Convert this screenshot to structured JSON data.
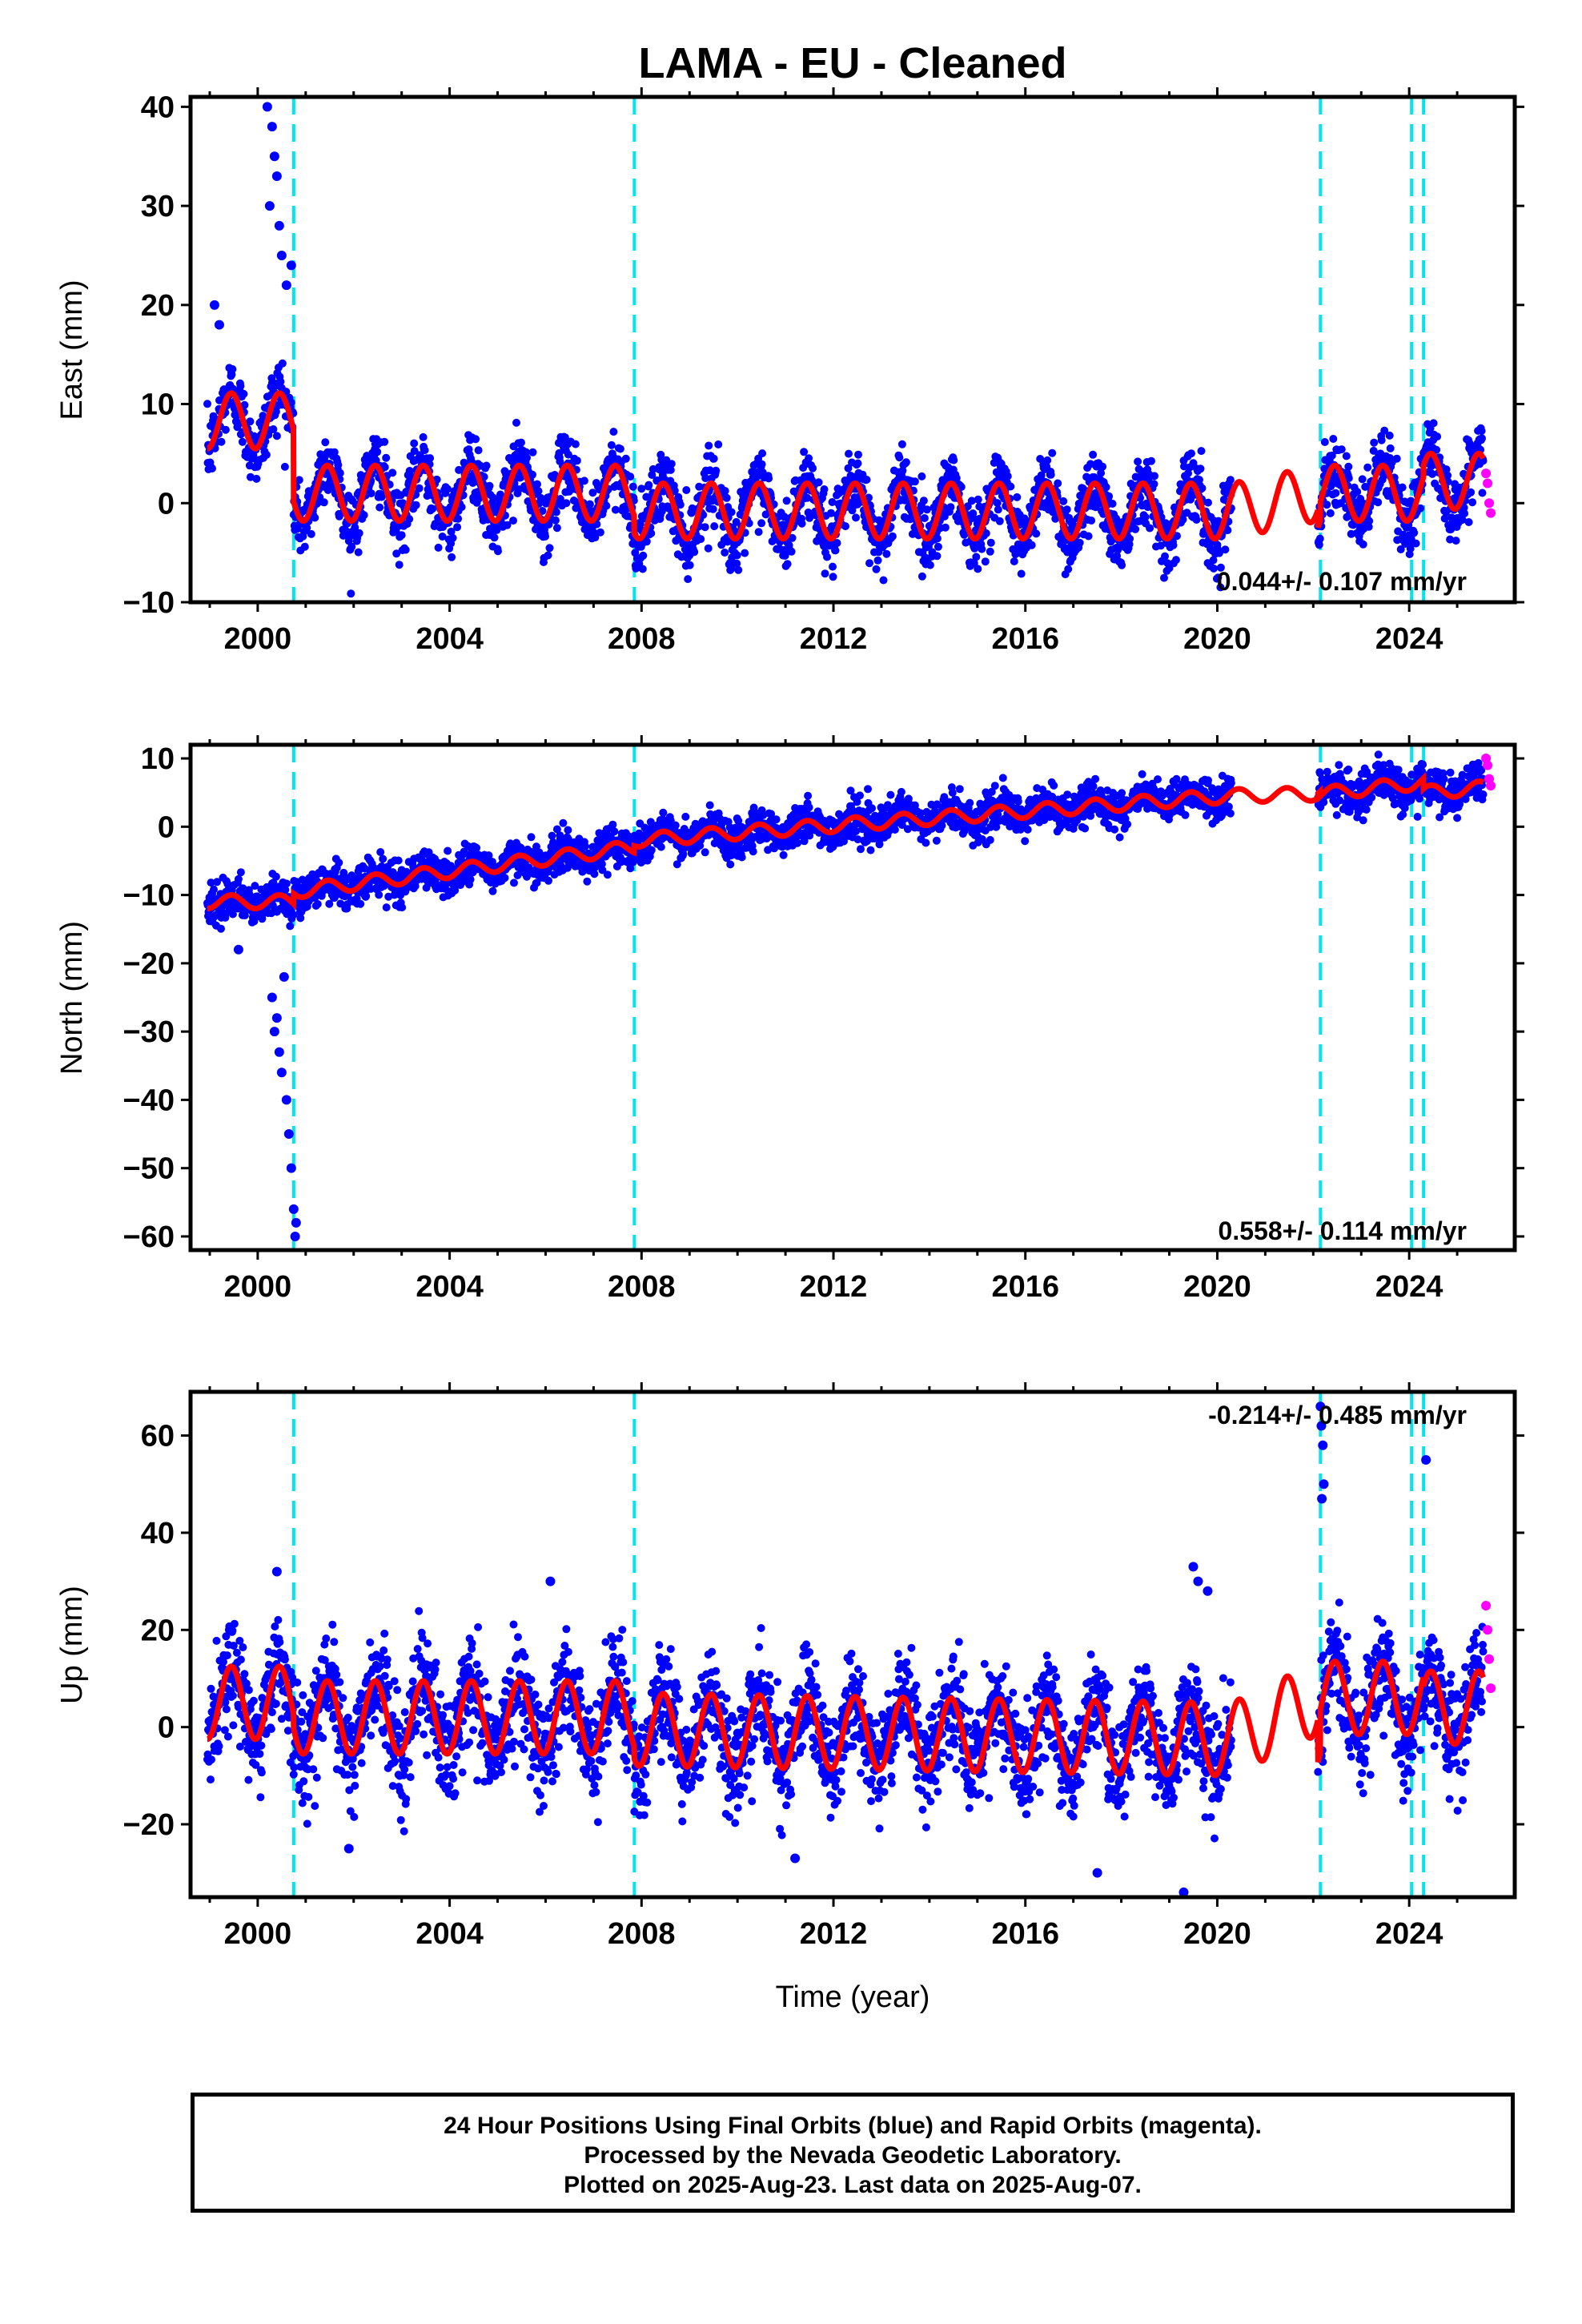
{
  "title": "LAMA  - EU - Cleaned",
  "x_axis": {
    "label": "Time (year)",
    "ticks": [
      "2000",
      "2004",
      "2008",
      "2012",
      "2016",
      "2020",
      "2024"
    ]
  },
  "footer": {
    "line1": "24 Hour Positions Using Final Orbits (blue) and Rapid Orbits (magenta).",
    "line2": "Processed by the Nevada Geodetic Laboratory.",
    "line3": "Plotted on 2025-Aug-23. Last data on 2025-Aug-07."
  },
  "colors": {
    "final_orbits": "#0000ff",
    "rapid_orbits": "#ff00ff",
    "model_fit": "#ff0000",
    "equipment_change": "#00e5ee",
    "frame": "#000000"
  },
  "chart_data": [
    {
      "type": "scatter",
      "panel": "east",
      "title": "LAMA  - EU - Cleaned",
      "xlabel": "",
      "ylabel": "East (mm)",
      "xlim": [
        1998.6,
        2026.2
      ],
      "ylim": [
        -10,
        41
      ],
      "yticks": [
        "40",
        "30",
        "20",
        "10",
        "0",
        "−10"
      ],
      "ytick_values": [
        40,
        30,
        20,
        10,
        0,
        -10
      ],
      "xticks": [
        2000,
        2004,
        2008,
        2012,
        2016,
        2020,
        2024
      ],
      "rate_annotation": "0.044+/- 0.107 mm/yr",
      "rate_position": "bottom-right",
      "equipment_changes": [
        2000.75,
        2007.85,
        2022.15,
        2024.05,
        2024.3
      ],
      "data_gap": [
        2020.3,
        2022.1
      ],
      "series": [
        {
          "name": "",
          "role": "final-orbit daily positions (blue)",
          "x_range": [
            1998.95,
            2025.55
          ],
          "trend_start": 8.5,
          "trend_end": 0.5,
          "scatter_sigma": 1.7,
          "seasonal_amplitude": 3.0
        },
        {
          "name": "",
          "role": "rapid-orbit daily positions (magenta)",
          "x_range": [
            2025.5,
            2025.6
          ],
          "values": [
            3,
            2,
            0,
            -1
          ]
        },
        {
          "name": "",
          "role": "model fit (red)",
          "segments": [
            [
              1998.95,
              2000.75,
              8.3,
              8.3
            ],
            [
              2000.75,
              2007.85,
              1.0,
              1.0
            ],
            [
              2007.85,
              2022.15,
              -0.8,
              -0.8
            ],
            [
              2022.15,
              2024.3,
              1.0,
              1.0
            ],
            [
              2024.3,
              2025.55,
              2.2,
              2.2
            ]
          ],
          "seasonal_amplitude": 2.8
        }
      ],
      "outliers": [
        [
          2000.2,
          40
        ],
        [
          2000.3,
          38
        ],
        [
          2000.35,
          35
        ],
        [
          2000.4,
          33
        ],
        [
          2000.25,
          30
        ],
        [
          2000.45,
          28
        ],
        [
          2000.5,
          25
        ],
        [
          2000.6,
          22
        ],
        [
          2000.7,
          24
        ],
        [
          1999.1,
          20
        ],
        [
          1999.2,
          18
        ]
      ]
    },
    {
      "type": "scatter",
      "panel": "north",
      "xlabel": "",
      "ylabel": "North (mm)",
      "xlim": [
        1998.6,
        2026.2
      ],
      "ylim": [
        -62,
        12
      ],
      "yticks": [
        "10",
        "0",
        "−10",
        "−20",
        "−30",
        "−40",
        "−50",
        "−60"
      ],
      "ytick_values": [
        10,
        0,
        -10,
        -20,
        -30,
        -40,
        -50,
        -60
      ],
      "xticks": [
        2000,
        2004,
        2008,
        2012,
        2016,
        2020,
        2024
      ],
      "rate_annotation": "0.558+/- 0.114 mm/yr",
      "rate_position": "bottom-right",
      "equipment_changes": [
        2000.75,
        2007.85,
        2022.15,
        2024.05,
        2024.3
      ],
      "data_gap": [
        2020.3,
        2022.1
      ],
      "series": [
        {
          "name": "",
          "role": "final-orbit daily positions (blue)",
          "x_range": [
            1998.95,
            2025.55
          ],
          "trend_start": -11.5,
          "trend_end": 6.5,
          "scatter_sigma": 1.4,
          "seasonal_amplitude": 1.0
        },
        {
          "name": "",
          "role": "rapid-orbit daily positions (magenta)",
          "x_range": [
            2025.5,
            2025.6
          ],
          "values": [
            10,
            9,
            7,
            6
          ]
        },
        {
          "name": "",
          "role": "model fit (red)",
          "segments": [
            [
              1998.95,
              2000.75,
              -11.0,
              -11.0
            ],
            [
              2000.75,
              2007.85,
              -9.5,
              -3.0
            ],
            [
              2007.85,
              2022.15,
              -2.0,
              5.5
            ],
            [
              2022.15,
              2024.3,
              4.8,
              6.5
            ],
            [
              2024.3,
              2025.55,
              5.0,
              5.7
            ]
          ],
          "seasonal_amplitude": 1.0
        }
      ],
      "outliers": [
        [
          2000.3,
          -25
        ],
        [
          2000.35,
          -30
        ],
        [
          2000.4,
          -28
        ],
        [
          2000.45,
          -33
        ],
        [
          2000.5,
          -36
        ],
        [
          2000.55,
          -22
        ],
        [
          2000.6,
          -40
        ],
        [
          2000.65,
          -45
        ],
        [
          2000.7,
          -50
        ],
        [
          2000.75,
          -56
        ],
        [
          2000.78,
          -60
        ],
        [
          2000.8,
          -58
        ],
        [
          1999.6,
          -18
        ]
      ]
    },
    {
      "type": "scatter",
      "panel": "up",
      "xlabel": "Time (year)",
      "ylabel": "Up (mm)",
      "xlim": [
        1998.6,
        2026.2
      ],
      "ylim": [
        -35,
        69
      ],
      "yticks": [
        "60",
        "40",
        "20",
        "0",
        "−20"
      ],
      "ytick_values": [
        60,
        40,
        20,
        0,
        -20
      ],
      "xticks": [
        2000,
        2004,
        2008,
        2012,
        2016,
        2020,
        2024
      ],
      "rate_annotation": "-0.214+/- 0.485 mm/yr",
      "rate_position": "top-right",
      "equipment_changes": [
        2000.75,
        2007.85,
        2022.15,
        2024.05,
        2024.3
      ],
      "data_gap": [
        2020.3,
        2022.1
      ],
      "series": [
        {
          "name": "",
          "role": "final-orbit daily positions (blue)",
          "x_range": [
            1998.95,
            2025.55
          ],
          "trend_start": 2.0,
          "trend_end": 0.5,
          "scatter_sigma": 5.2,
          "seasonal_amplitude": 7.5
        },
        {
          "name": "",
          "role": "rapid-orbit daily positions (magenta)",
          "x_range": [
            2025.5,
            2025.6
          ],
          "values": [
            25,
            20,
            14,
            8
          ]
        },
        {
          "name": "",
          "role": "model fit (red)",
          "segments": [
            [
              1998.95,
              2000.75,
              5.0,
              5.0
            ],
            [
              2000.75,
              2007.85,
              2.0,
              2.0
            ],
            [
              2007.85,
              2022.15,
              -0.5,
              -2.8
            ],
            [
              2022.15,
              2024.3,
              6.0,
              6.0
            ],
            [
              2024.3,
              2025.55,
              4.0,
              4.0
            ]
          ],
          "seasonal_amplitude": 7.5
        }
      ],
      "outliers": [
        [
          2022.15,
          66
        ],
        [
          2022.17,
          62
        ],
        [
          2022.2,
          58
        ],
        [
          2022.22,
          50
        ],
        [
          2022.18,
          47
        ],
        [
          2024.35,
          55
        ],
        [
          2019.5,
          33
        ],
        [
          2019.6,
          30
        ],
        [
          2019.8,
          28
        ],
        [
          2006.1,
          30
        ],
        [
          2000.4,
          32
        ],
        [
          2019.3,
          -34
        ],
        [
          2017.5,
          -30
        ],
        [
          2011.2,
          -27
        ],
        [
          2001.9,
          -25
        ]
      ]
    }
  ]
}
